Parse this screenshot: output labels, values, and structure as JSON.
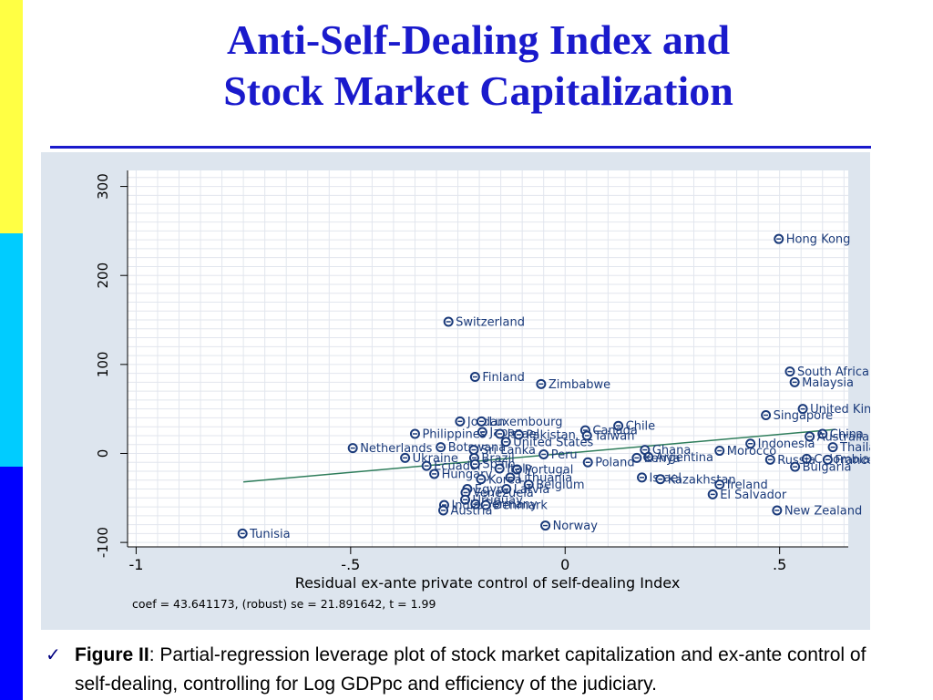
{
  "colors": {
    "strip_top": "#ffff44",
    "strip_mid": "#00ccff",
    "strip_bottom": "#0000ff",
    "title": "#1a1acc",
    "panel_bg": "#dde5ee",
    "plot_bg": "#ffffff",
    "marker": "#1a3a7a",
    "label": "#1a3a7a",
    "fit_line": "#2e7d5b"
  },
  "slide": {
    "title_line1": "Anti-Self-Dealing Index and",
    "title_line2": "Stock Market Capitalization",
    "check_icon": "✓",
    "caption_label": "Figure II",
    "caption_text": ":  Partial-regression leverage plot of stock market capitalization and ex-ante control of self-dealing, controlling for Log GDPpc and efficiency of the judiciary."
  },
  "chart_data": {
    "type": "scatter",
    "title": "",
    "xlabel": "Residual ex-ante private control of self-dealing Index",
    "ylabel": "",
    "footnote": "coef = 43.641173, (robust) se = 21.891642, t = 1.99",
    "xlim": [
      -1.02,
      0.66
    ],
    "ylim": [
      -105,
      318
    ],
    "xticks": [
      -1,
      -0.5,
      0,
      0.5
    ],
    "xtick_labels": [
      "-1",
      "-.5",
      "0",
      ".5"
    ],
    "yticks": [
      -100,
      0,
      100,
      200,
      300
    ],
    "ytick_labels": [
      "-100",
      "0",
      "100",
      "200",
      "300"
    ],
    "grid": true,
    "fit_line": {
      "x": [
        -0.75,
        0.63
      ],
      "y": [
        -32,
        27
      ]
    },
    "points": [
      {
        "label": "Hong Kong",
        "x": 0.498,
        "y": 241
      },
      {
        "label": "Switzerland",
        "x": -0.272,
        "y": 148
      },
      {
        "label": "South Africa",
        "x": 0.524,
        "y": 92
      },
      {
        "label": "Finland",
        "x": -0.21,
        "y": 86
      },
      {
        "label": "Malaysia",
        "x": 0.535,
        "y": 80
      },
      {
        "label": "Zimbabwe",
        "x": -0.056,
        "y": 78
      },
      {
        "label": "United Kingdom",
        "x": 0.554,
        "y": 50
      },
      {
        "label": "Singapore",
        "x": 0.468,
        "y": 43
      },
      {
        "label": "Jordan",
        "x": -0.245,
        "y": 36
      },
      {
        "label": "Luxembourg",
        "x": -0.195,
        "y": 36
      },
      {
        "label": "Chile",
        "x": 0.124,
        "y": 31
      },
      {
        "label": "Canada",
        "x": 0.047,
        "y": 26
      },
      {
        "label": "Japan",
        "x": -0.193,
        "y": 24
      },
      {
        "label": "Israel",
        "x": -0.152,
        "y": 22
      },
      {
        "label": "Pakistan",
        "x": -0.108,
        "y": 21
      },
      {
        "label": "Philippines",
        "x": -0.35,
        "y": 22
      },
      {
        "label": "Taiwan",
        "x": 0.051,
        "y": 20
      },
      {
        "label": "China",
        "x": 0.6,
        "y": 22
      },
      {
        "label": "Australia",
        "x": 0.57,
        "y": 19
      },
      {
        "label": "United States",
        "x": -0.138,
        "y": 13
      },
      {
        "label": "Indonesia",
        "x": 0.432,
        "y": 11
      },
      {
        "label": "Thailand",
        "x": 0.624,
        "y": 7
      },
      {
        "label": "Botswana",
        "x": -0.29,
        "y": 7
      },
      {
        "label": "Sri Lanka",
        "x": -0.213,
        "y": 4
      },
      {
        "label": "Netherlands",
        "x": -0.495,
        "y": 6
      },
      {
        "label": "Ghana",
        "x": 0.186,
        "y": 4
      },
      {
        "label": "Morocco",
        "x": 0.36,
        "y": 3
      },
      {
        "label": "Peru",
        "x": -0.05,
        "y": -1
      },
      {
        "label": "Ukraine",
        "x": -0.373,
        "y": -5
      },
      {
        "label": "Argentina",
        "x": 0.194,
        "y": -4
      },
      {
        "label": "Kenya",
        "x": 0.167,
        "y": -5
      },
      {
        "label": "Colombia",
        "x": 0.563,
        "y": -6
      },
      {
        "label": "Russia",
        "x": 0.478,
        "y": -7
      },
      {
        "label": "France",
        "x": 0.612,
        "y": -7
      },
      {
        "label": "Poland",
        "x": 0.053,
        "y": -10
      },
      {
        "label": "Brazil",
        "x": -0.212,
        "y": -5
      },
      {
        "label": "Ecuador",
        "x": -0.323,
        "y": -14
      },
      {
        "label": "Spain",
        "x": -0.21,
        "y": -12
      },
      {
        "label": "Bulgaria",
        "x": 0.536,
        "y": -15
      },
      {
        "label": "Portugal",
        "x": -0.112,
        "y": -18
      },
      {
        "label": "Italy",
        "x": -0.153,
        "y": -17
      },
      {
        "label": "Hungary",
        "x": -0.305,
        "y": -23
      },
      {
        "label": "Lithuania",
        "x": -0.128,
        "y": -27
      },
      {
        "label": "Korea",
        "x": -0.196,
        "y": -29
      },
      {
        "label": "Israel",
        "x": 0.179,
        "y": -27
      },
      {
        "label": "Kazakhstan",
        "x": 0.222,
        "y": -29
      },
      {
        "label": "Ireland",
        "x": 0.36,
        "y": -35
      },
      {
        "label": "Belgium",
        "x": -0.085,
        "y": -35
      },
      {
        "label": "Egypt",
        "x": -0.228,
        "y": -40
      },
      {
        "label": "Latvia",
        "x": -0.137,
        "y": -40
      },
      {
        "label": "Venezuela",
        "x": -0.232,
        "y": -44
      },
      {
        "label": "El Salvador",
        "x": 0.344,
        "y": -46
      },
      {
        "label": "Uruguay",
        "x": -0.233,
        "y": -52
      },
      {
        "label": "Germany",
        "x": -0.209,
        "y": -57
      },
      {
        "label": "Denmark",
        "x": -0.185,
        "y": -58
      },
      {
        "label": "India",
        "x": -0.282,
        "y": -58
      },
      {
        "label": "Austria",
        "x": -0.284,
        "y": -64
      },
      {
        "label": "New Zealand",
        "x": 0.494,
        "y": -64
      },
      {
        "label": "Norway",
        "x": -0.046,
        "y": -81
      },
      {
        "label": "Tunisia",
        "x": -0.752,
        "y": -90
      }
    ]
  }
}
